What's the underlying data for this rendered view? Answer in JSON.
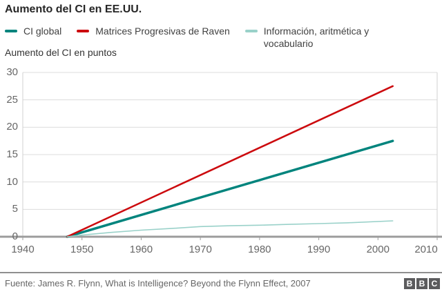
{
  "title": "Aumento del CI en EE.UU.",
  "legend": [
    {
      "label": "CI global",
      "color": "#00847d"
    },
    {
      "label": "Matrices Progresivas de Raven",
      "color": "#cc0a0e"
    },
    {
      "label": "Información, aritmética y vocabulario",
      "color": "#99d1c9"
    }
  ],
  "footer": {
    "source": "Fuente: James R. Flynn, What is Intelligence? Beyond the Flynn Effect, 2007"
  },
  "logo": {
    "letters": [
      "B",
      "B",
      "C"
    ]
  },
  "colors": {
    "grid": "#dcdcdc",
    "plot_border": "#d0d0d0",
    "zero_axis": "#9c9c9c",
    "tick": "#9c9c9c",
    "tick_label": "#666666",
    "background": "#ffffff"
  },
  "chart_data": {
    "type": "line",
    "title": "Aumento del CI en EE.UU.",
    "subtitle": "",
    "xlabel": "",
    "ylabel": "Aumento del CI en puntos",
    "xlim": [
      1940,
      2010
    ],
    "ylim": [
      0,
      30
    ],
    "xticks": [
      1940,
      1950,
      1960,
      1970,
      1980,
      1990,
      2000,
      2010
    ],
    "yticks": [
      0,
      5,
      10,
      15,
      20,
      25,
      30
    ],
    "grid": true,
    "legend_position": "top",
    "series": [
      {
        "name": "CI global",
        "color": "#00847d",
        "stroke_width": 3.5,
        "points": [
          [
            1947.5,
            0
          ],
          [
            2002.5,
            17.5
          ]
        ]
      },
      {
        "name": "Matrices Progresivas de Raven",
        "color": "#cc0a0e",
        "stroke_width": 2.6,
        "points": [
          [
            1947.5,
            0
          ],
          [
            2002.5,
            27.5
          ]
        ]
      },
      {
        "name": "Información, aritmética y vocabulario",
        "color": "#99d1c9",
        "stroke_width": 1.6,
        "points": [
          [
            1947.5,
            0
          ],
          [
            1950,
            0.3
          ],
          [
            1955,
            0.8
          ],
          [
            1960,
            1.2
          ],
          [
            1965,
            1.5
          ],
          [
            1970,
            1.85
          ],
          [
            1975,
            2.0
          ],
          [
            1980,
            2.1
          ],
          [
            1985,
            2.25
          ],
          [
            1990,
            2.4
          ],
          [
            1995,
            2.55
          ],
          [
            2002.5,
            2.9
          ]
        ]
      }
    ]
  }
}
